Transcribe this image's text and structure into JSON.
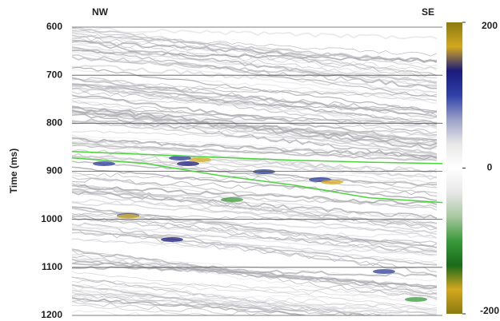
{
  "chart_data": {
    "type": "seismic",
    "ylabel": "Time (ms)",
    "left_label": "NW",
    "right_label": "SE",
    "ylim": [
      600,
      1200
    ],
    "yticks": [
      600,
      700,
      800,
      900,
      1000,
      1100,
      1200
    ],
    "grid": true,
    "clim": [
      -200,
      200
    ],
    "cticks": [
      200,
      0,
      -200
    ],
    "colormap": [
      "#8a7a10",
      "#d4a820",
      "#1a1a7a",
      "#3040a8",
      "#9aa0c8",
      "#e8e8e8",
      "#ffffff",
      "#e8e8e8",
      "#a8c8a0",
      "#3a9a3a",
      "#1a6a1a",
      "#d4a820",
      "#8a7a10"
    ],
    "horizons": [
      {
        "color": "#4cd43c",
        "values": [
          859,
          865,
          871,
          877,
          881,
          884
        ]
      },
      {
        "color": "#4cd43c",
        "values": [
          872,
          884,
          909,
          929,
          955,
          965
        ]
      }
    ]
  }
}
